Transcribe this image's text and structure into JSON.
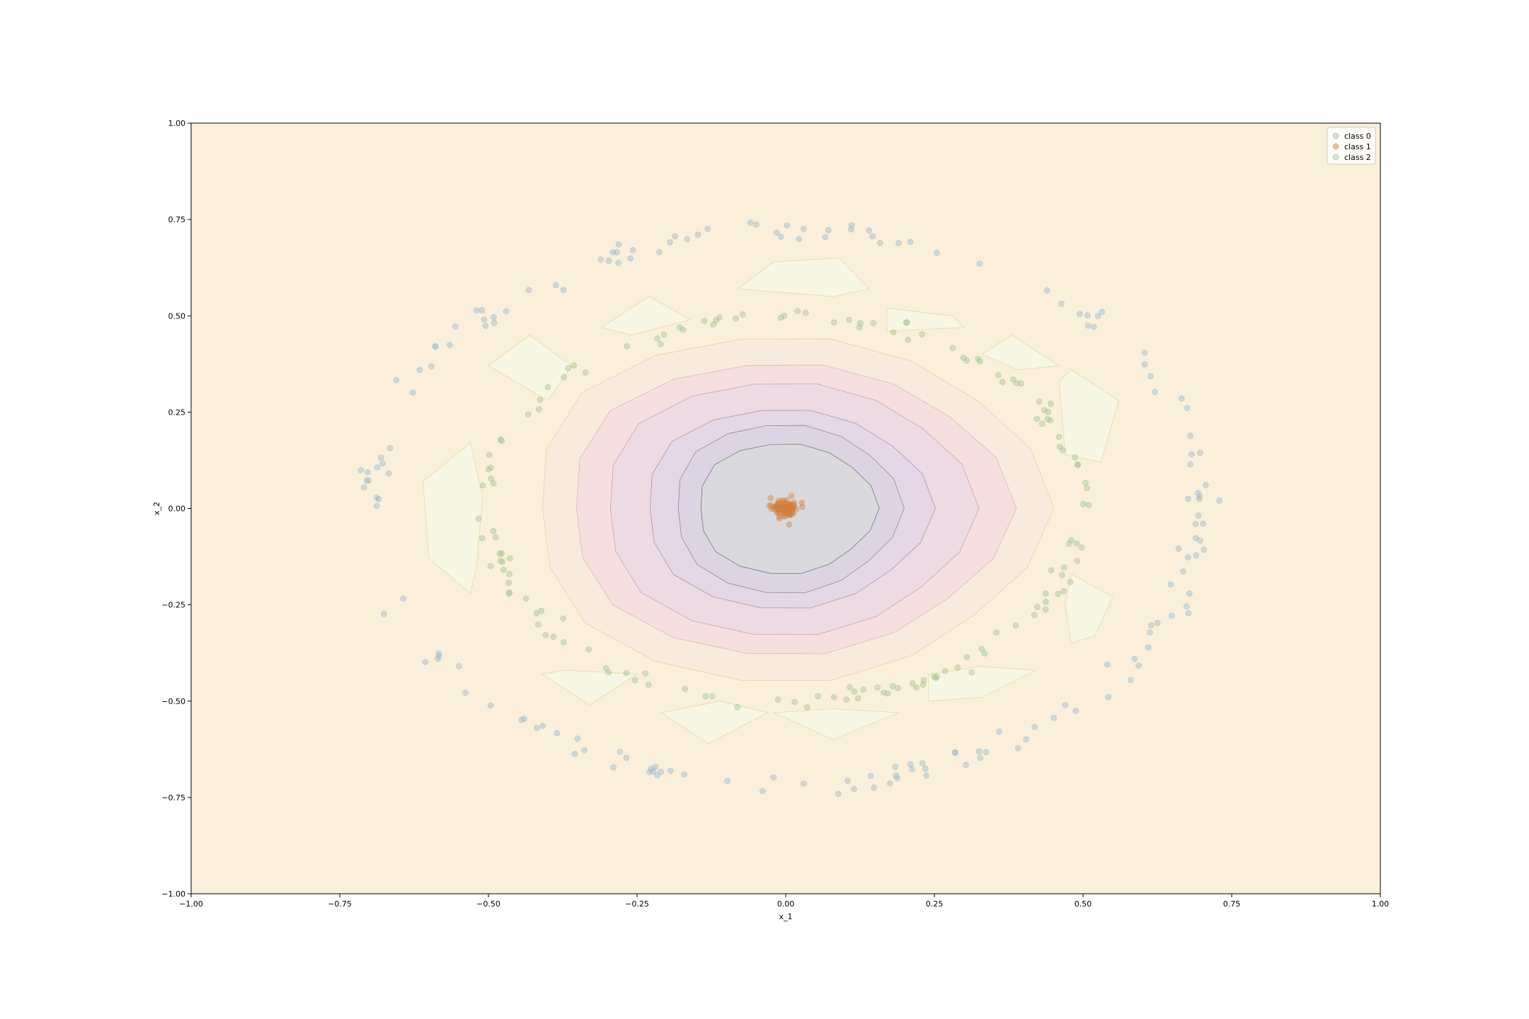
{
  "chart_data": {
    "type": "scatter",
    "title": "",
    "xlabel": "x_1",
    "ylabel": "x_2",
    "xlim": [
      -1.0,
      1.0
    ],
    "ylim": [
      -1.0,
      1.0
    ],
    "xticks": [
      "−1.00",
      "−0.75",
      "−0.50",
      "−0.25",
      "0.00",
      "0.25",
      "0.50",
      "0.75",
      "1.00"
    ],
    "yticks": [
      "−1.00",
      "−0.75",
      "−0.50",
      "−0.25",
      "0.00",
      "0.25",
      "0.50",
      "0.75",
      "1.00"
    ],
    "xtick_values": [
      -1.0,
      -0.75,
      -0.5,
      -0.25,
      0.0,
      0.25,
      0.5,
      0.75,
      1.0
    ],
    "ytick_values": [
      -1.0,
      -0.75,
      -0.5,
      -0.25,
      0.0,
      0.25,
      0.5,
      0.75,
      1.0
    ],
    "grid": false,
    "legend_position": "top-right",
    "background_fill": "decision regions (filled contour)",
    "series": [
      {
        "name": "class 0",
        "color": "#9ec1d9",
        "ring_radius_x": 0.7,
        "ring_radius_y": 0.72,
        "noise": 0.02,
        "count": 170
      },
      {
        "name": "class 1",
        "color": "#e87d2a",
        "cluster_center": [
          0.0,
          0.0
        ],
        "spread": 0.012,
        "count": 90
      },
      {
        "name": "class 2",
        "color": "#a8d08d",
        "ring_radius_x": 0.5,
        "ring_radius_y": 0.5,
        "noise": 0.02,
        "count": 150
      }
    ],
    "contour_levels": [
      {
        "color": "#faefdb",
        "rx": 1.2,
        "ry": 1.2
      },
      {
        "color": "#f7ebdd",
        "rx": 0.43,
        "ry": 0.45
      },
      {
        "color": "#f5e0df",
        "rx": 0.37,
        "ry": 0.38
      },
      {
        "color": "#ecdbe3",
        "rx": 0.31,
        "ry": 0.33
      },
      {
        "color": "#e5d8e6",
        "rx": 0.24,
        "ry": 0.26
      },
      {
        "color": "#dcd4e3",
        "rx": 0.19,
        "ry": 0.22
      },
      {
        "color": "#d9d9de",
        "rx": 0.15,
        "ry": 0.17
      }
    ],
    "contour_outline_colors": [
      "#e9cfa6",
      "#e0b7a8",
      "#c9a0b0",
      "#a993a9",
      "#8e8a93",
      "#777777"
    ],
    "pale_patch_color": "#f8f6e4"
  }
}
